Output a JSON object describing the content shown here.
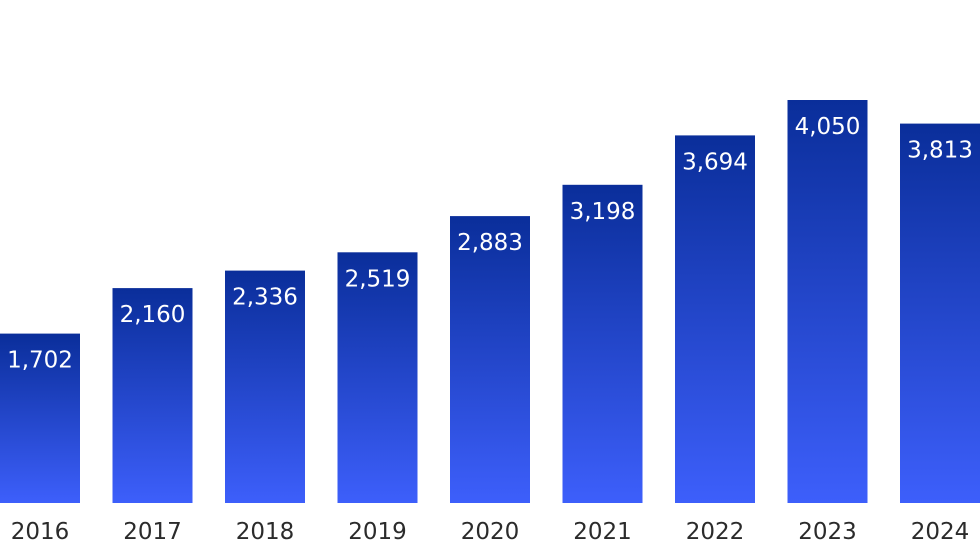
{
  "chart_data": {
    "type": "bar",
    "categories": [
      "2016",
      "2017",
      "2018",
      "2019",
      "2020",
      "2021",
      "2022",
      "2023",
      "2024"
    ],
    "values": [
      1702,
      2160,
      2336,
      2519,
      2883,
      3198,
      3694,
      4050,
      3813
    ],
    "value_labels": [
      "1,702",
      "2,160",
      "2,336",
      "2,519",
      "2,883",
      "3,198",
      "3,694",
      "4,050",
      "3,813"
    ],
    "title": "",
    "xlabel": "",
    "ylabel": "",
    "ylim": [
      0,
      4050
    ],
    "grid": false,
    "legend": "none",
    "colors": {
      "bar_top": "#0a2e9a",
      "bar_bottom": "#3d5ffb",
      "value_text": "#ffffff",
      "tick_text": "#2b2b2b"
    }
  }
}
